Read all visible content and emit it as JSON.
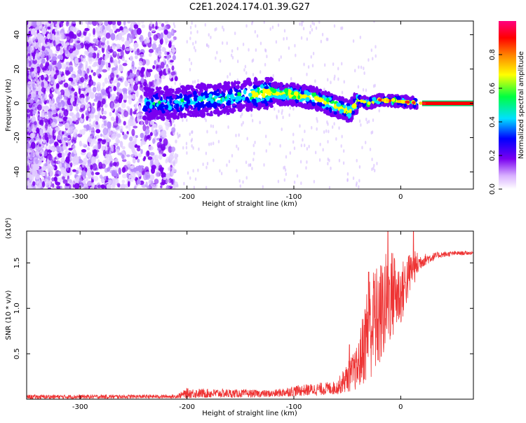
{
  "title": "C2E1.2024.174.01.39.G27",
  "chart_data": [
    {
      "type": "heatmap",
      "xlabel": "Height of straight line (km)",
      "ylabel": "Frequency (Hz)",
      "xlim": [
        -350,
        68
      ],
      "ylim": [
        -50,
        48
      ],
      "xticks": [
        -300,
        -200,
        -100,
        0
      ],
      "yticks": [
        -40,
        -20,
        0,
        20,
        40
      ],
      "colorbar": {
        "label": "Normalized spectral amplitude",
        "range": [
          0.0,
          1.0
        ],
        "ticks": [
          "0.0",
          "0.2",
          "0.4",
          "0.6",
          "0.8"
        ],
        "colors": [
          "#ffffff",
          "#d8b0ff",
          "#7a00f0",
          "#0000ff",
          "#00e0ff",
          "#00ff40",
          "#ffff00",
          "#ff8000",
          "#ff0000",
          "#ff0080"
        ]
      },
      "frequency_track": [
        {
          "x": -220,
          "y": 0
        },
        {
          "x": -200,
          "y": 1
        },
        {
          "x": -180,
          "y": 2
        },
        {
          "x": -160,
          "y": 3
        },
        {
          "x": -140,
          "y": 5
        },
        {
          "x": -120,
          "y": 6
        },
        {
          "x": -100,
          "y": 5
        },
        {
          "x": -80,
          "y": 3
        },
        {
          "x": -60,
          "y": -2
        },
        {
          "x": -48,
          "y": -5
        },
        {
          "x": -40,
          "y": 2
        },
        {
          "x": -30,
          "y": 0
        },
        {
          "x": -20,
          "y": 2
        },
        {
          "x": 0,
          "y": 1
        },
        {
          "x": 20,
          "y": 0
        },
        {
          "x": 68,
          "y": 0
        }
      ]
    },
    {
      "type": "line",
      "xlabel": "Height of straight line (km)",
      "ylabel": "SNR (10 * v/v)",
      "y_multiplier": "(x10⁴)",
      "xlim": [
        -350,
        68
      ],
      "ylim": [
        0,
        1.85
      ],
      "xticks": [
        -300,
        -200,
        -100,
        0
      ],
      "yticks": [
        0.5,
        1.0,
        1.5
      ],
      "color": "#ee3333",
      "envelope": [
        {
          "x": -350,
          "lo": 0.0,
          "hi": 0.05
        },
        {
          "x": -210,
          "lo": 0.01,
          "hi": 0.05
        },
        {
          "x": -200,
          "lo": 0.01,
          "hi": 0.12
        },
        {
          "x": -120,
          "lo": 0.02,
          "hi": 0.1
        },
        {
          "x": -100,
          "lo": 0.03,
          "hi": 0.15
        },
        {
          "x": -60,
          "lo": 0.05,
          "hi": 0.2
        },
        {
          "x": -40,
          "lo": 0.1,
          "hi": 0.6
        },
        {
          "x": -30,
          "lo": 0.2,
          "hi": 1.4
        },
        {
          "x": -20,
          "lo": 0.3,
          "hi": 1.5
        },
        {
          "x": -10,
          "lo": 0.6,
          "hi": 1.7
        },
        {
          "x": 0,
          "lo": 0.8,
          "hi": 1.5
        },
        {
          "x": 10,
          "lo": 1.2,
          "hi": 1.65
        },
        {
          "x": 20,
          "lo": 1.45,
          "hi": 1.6
        },
        {
          "x": 35,
          "lo": 1.55,
          "hi": 1.62
        },
        {
          "x": 50,
          "lo": 1.58,
          "hi": 1.63
        },
        {
          "x": 68,
          "lo": 1.59,
          "hi": 1.63
        }
      ],
      "spikes": [
        {
          "x": -48,
          "y": 0.6
        },
        {
          "x": -30,
          "y": 1.4
        },
        {
          "x": -25,
          "y": 1.3
        },
        {
          "x": -12,
          "y": 1.85
        },
        {
          "x": -6,
          "y": 1.55
        },
        {
          "x": 12,
          "y": 1.85
        }
      ]
    }
  ]
}
